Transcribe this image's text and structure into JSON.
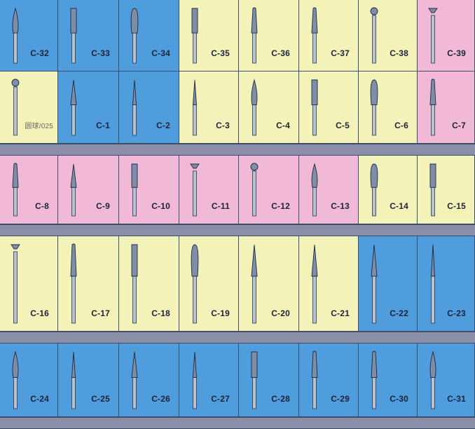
{
  "colors": {
    "blue": "#4f9ddc",
    "yellow": "#f3f3b9",
    "pink": "#f1b9d6",
    "divider": "#8a8ea6"
  },
  "rows": [
    {
      "items": [
        {
          "label": "C-32",
          "bg": "blue",
          "shape": "flame"
        },
        {
          "label": "C-33",
          "bg": "blue",
          "shape": "cylinder"
        },
        {
          "label": "C-34",
          "bg": "blue",
          "shape": "pear"
        },
        {
          "label": "C-35",
          "bg": "yellow",
          "shape": "cylinder"
        },
        {
          "label": "C-36",
          "bg": "yellow",
          "shape": "taper"
        },
        {
          "label": "C-37",
          "bg": "yellow",
          "shape": "taper"
        },
        {
          "label": "C-38",
          "bg": "yellow",
          "shape": "ball"
        },
        {
          "label": "C-39",
          "bg": "pink",
          "shape": "inverted-cone"
        }
      ]
    },
    {
      "items": [
        {
          "label": "圆球/025",
          "bg": "yellow",
          "shape": "ball"
        },
        {
          "label": "C-1",
          "bg": "blue",
          "shape": "cone"
        },
        {
          "label": "C-2",
          "bg": "blue",
          "shape": "needle"
        },
        {
          "label": "C-3",
          "bg": "yellow",
          "shape": "needle"
        },
        {
          "label": "C-4",
          "bg": "yellow",
          "shape": "flame"
        },
        {
          "label": "C-5",
          "bg": "yellow",
          "shape": "cylinder"
        },
        {
          "label": "C-6",
          "bg": "yellow",
          "shape": "pear"
        },
        {
          "label": "C-7",
          "bg": "pink",
          "shape": "taper"
        }
      ]
    },
    {
      "items": [
        {
          "label": "C-8",
          "bg": "pink",
          "shape": "taper"
        },
        {
          "label": "C-9",
          "bg": "pink",
          "shape": "cone"
        },
        {
          "label": "C-10",
          "bg": "pink",
          "shape": "cylinder"
        },
        {
          "label": "C-11",
          "bg": "pink",
          "shape": "inverted-cone"
        },
        {
          "label": "C-12",
          "bg": "pink",
          "shape": "ball"
        },
        {
          "label": "C-13",
          "bg": "pink",
          "shape": "flame"
        },
        {
          "label": "C-14",
          "bg": "yellow",
          "shape": "pear"
        },
        {
          "label": "C-15",
          "bg": "yellow",
          "shape": "cylinder"
        }
      ]
    },
    {
      "items": [
        {
          "label": "C-16",
          "bg": "yellow",
          "shape": "inverted-cone"
        },
        {
          "label": "C-17",
          "bg": "yellow",
          "shape": "taper"
        },
        {
          "label": "C-18",
          "bg": "yellow",
          "shape": "cylinder"
        },
        {
          "label": "C-19",
          "bg": "yellow",
          "shape": "pear"
        },
        {
          "label": "C-20",
          "bg": "yellow",
          "shape": "cone"
        },
        {
          "label": "C-21",
          "bg": "yellow",
          "shape": "cone"
        },
        {
          "label": "C-22",
          "bg": "blue",
          "shape": "cone"
        },
        {
          "label": "C-23",
          "bg": "blue",
          "shape": "needle"
        }
      ]
    },
    {
      "items": [
        {
          "label": "C-24",
          "bg": "blue",
          "shape": "flame"
        },
        {
          "label": "C-25",
          "bg": "blue",
          "shape": "needle"
        },
        {
          "label": "C-26",
          "bg": "blue",
          "shape": "cone"
        },
        {
          "label": "C-27",
          "bg": "blue",
          "shape": "needle"
        },
        {
          "label": "C-28",
          "bg": "blue",
          "shape": "cylinder"
        },
        {
          "label": "C-29",
          "bg": "blue",
          "shape": "taper"
        },
        {
          "label": "C-30",
          "bg": "blue",
          "shape": "taper"
        },
        {
          "label": "C-31",
          "bg": "blue",
          "shape": "flame"
        }
      ]
    }
  ]
}
